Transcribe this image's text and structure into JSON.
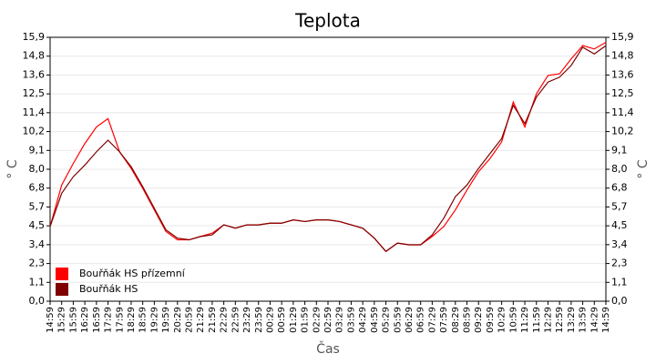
{
  "chart_data": {
    "type": "line",
    "title": "Teplota",
    "x_label": "Čas",
    "y_label": "° C",
    "categories": [
      "14:59",
      "15:29",
      "15:59",
      "16:29",
      "16:59",
      "17:29",
      "17:59",
      "18:29",
      "18:59",
      "19:29",
      "19:59",
      "20:29",
      "20:59",
      "21:29",
      "21:59",
      "22:29",
      "22:59",
      "23:29",
      "23:59",
      "00:29",
      "00:59",
      "01:29",
      "01:59",
      "02:29",
      "02:59",
      "03:29",
      "03:59",
      "04:29",
      "04:59",
      "05:29",
      "05:59",
      "06:29",
      "06:59",
      "07:29",
      "07:59",
      "08:29",
      "08:59",
      "09:29",
      "09:59",
      "10:29",
      "10:59",
      "11:29",
      "11:59",
      "12:29",
      "12:59",
      "13:29",
      "13:59",
      "14:29",
      "14:59"
    ],
    "series": [
      {
        "name": "Bouřňák HS přízemní",
        "color": "#ff0000",
        "values": [
          4.5,
          7.0,
          8.3,
          9.5,
          10.5,
          11.0,
          9.0,
          8.0,
          6.8,
          5.5,
          4.2,
          3.7,
          3.7,
          3.9,
          4.1,
          4.6,
          4.4,
          4.6,
          4.6,
          4.7,
          4.7,
          4.9,
          4.8,
          4.9,
          4.9,
          4.8,
          4.6,
          4.4,
          3.8,
          3.0,
          3.5,
          3.4,
          3.4,
          3.9,
          4.5,
          5.5,
          6.7,
          7.8,
          8.6,
          9.6,
          12.0,
          10.5,
          12.5,
          13.6,
          13.7,
          14.6,
          15.4,
          15.2,
          15.6
        ]
      },
      {
        "name": "Bouřňák HS",
        "color": "#800000",
        "values": [
          4.5,
          6.5,
          7.5,
          8.2,
          9.0,
          9.7,
          9.0,
          8.1,
          6.9,
          5.6,
          4.3,
          3.8,
          3.7,
          3.9,
          4.0,
          4.6,
          4.4,
          4.6,
          4.6,
          4.7,
          4.7,
          4.9,
          4.8,
          4.9,
          4.9,
          4.8,
          4.6,
          4.4,
          3.8,
          3.0,
          3.5,
          3.4,
          3.4,
          4.0,
          5.0,
          6.3,
          7.0,
          8.0,
          8.9,
          9.8,
          11.8,
          10.7,
          12.3,
          13.2,
          13.5,
          14.2,
          15.3,
          14.9,
          15.4
        ]
      }
    ],
    "ylim": [
      0,
      15.9
    ],
    "yticks": [
      {
        "value": 0,
        "label": "0,0"
      },
      {
        "value": 1.136,
        "label": "1,1"
      },
      {
        "value": 2.271,
        "label": "2,3"
      },
      {
        "value": 3.407,
        "label": "3,4"
      },
      {
        "value": 4.543,
        "label": "4,5"
      },
      {
        "value": 5.679,
        "label": "5,7"
      },
      {
        "value": 6.814,
        "label": "6,8"
      },
      {
        "value": 7.95,
        "label": "8,0"
      },
      {
        "value": 9.086,
        "label": "9,1"
      },
      {
        "value": 10.221,
        "label": "10,2"
      },
      {
        "value": 11.357,
        "label": "11,4"
      },
      {
        "value": 12.493,
        "label": "12,5"
      },
      {
        "value": 13.629,
        "label": "13,6"
      },
      {
        "value": 14.764,
        "label": "14,8"
      },
      {
        "value": 15.9,
        "label": "15,9"
      }
    ],
    "grid": true,
    "legend": "lower left"
  }
}
